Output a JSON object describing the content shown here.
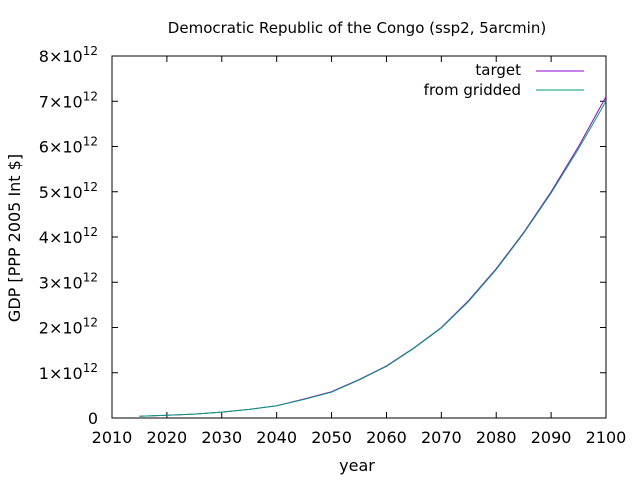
{
  "chart_data": {
    "type": "line",
    "title": "Democratic Republic of the Congo (ssp2, 5arcmin)",
    "xlabel": "year",
    "ylabel": "GDP [PPP 2005 Int $]",
    "xlim": [
      2010,
      2100
    ],
    "ylim": [
      0,
      8000000000000.0
    ],
    "grid": false,
    "legend_position": "top-right",
    "x_ticks": [
      "2010",
      "2020",
      "2030",
      "2040",
      "2050",
      "2060",
      "2070",
      "2080",
      "2090",
      "2100"
    ],
    "y_ticks": [
      {
        "value": 0,
        "mantissa": "0",
        "exp": ""
      },
      {
        "value": 1000000000000.0,
        "mantissa": "1×10",
        "exp": "12"
      },
      {
        "value": 2000000000000.0,
        "mantissa": "2×10",
        "exp": "12"
      },
      {
        "value": 3000000000000.0,
        "mantissa": "3×10",
        "exp": "12"
      },
      {
        "value": 4000000000000.0,
        "mantissa": "4×10",
        "exp": "12"
      },
      {
        "value": 5000000000000.0,
        "mantissa": "5×10",
        "exp": "12"
      },
      {
        "value": 6000000000000.0,
        "mantissa": "6×10",
        "exp": "12"
      },
      {
        "value": 7000000000000.0,
        "mantissa": "7×10",
        "exp": "12"
      },
      {
        "value": 8000000000000.0,
        "mantissa": "8×10",
        "exp": "12"
      }
    ],
    "x": [
      2015,
      2020,
      2025,
      2030,
      2035,
      2040,
      2045,
      2050,
      2055,
      2060,
      2065,
      2070,
      2075,
      2080,
      2085,
      2090,
      2095,
      2100
    ],
    "series": [
      {
        "name": "target",
        "color": "#9400d3",
        "values": [
          40000000000.0,
          60000000000.0,
          85000000000.0,
          130000000000.0,
          190000000000.0,
          270000000000.0,
          420000000000.0,
          580000000000.0,
          850000000000.0,
          1150000000000.0,
          1550000000000.0,
          2000000000000.0,
          2600000000000.0,
          3300000000000.0,
          4100000000000.0,
          5000000000000.0,
          6000000000000.0,
          7100000000000.0
        ]
      },
      {
        "name": "from gridded",
        "color": "#009e73",
        "values": [
          40000000000.0,
          60000000000.0,
          85000000000.0,
          130000000000.0,
          190000000000.0,
          270000000000.0,
          410000000000.0,
          570000000000.0,
          840000000000.0,
          1140000000000.0,
          1540000000000.0,
          1990000000000.0,
          2580000000000.0,
          3280000000000.0,
          4080000000000.0,
          4970000000000.0,
          5950000000000.0,
          7000000000000.0
        ]
      }
    ]
  }
}
